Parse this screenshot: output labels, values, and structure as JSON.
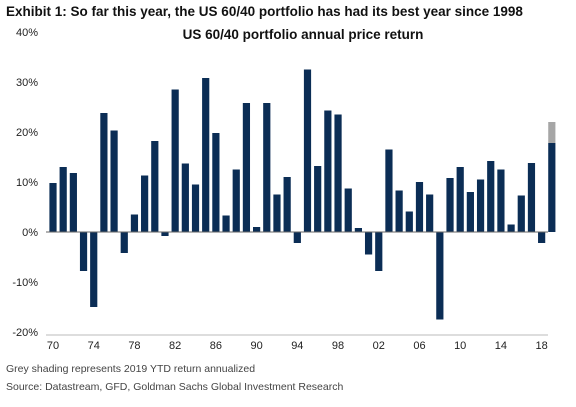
{
  "exhibit_title": "Exhibit 1: So far this year, the US 60/40 portfolio has had its best year since 1998",
  "footnotes": {
    "grey_note": "Grey shading represents 2019 YTD return annualized",
    "source": "Source: Datastream, GFD, Goldman Sachs Global Investment Research"
  },
  "chart_data": {
    "type": "bar",
    "title": "US 60/40 portfolio annual price return",
    "xlabel": "",
    "ylabel": "",
    "x": [
      1970,
      1971,
      1972,
      1973,
      1974,
      1975,
      1976,
      1977,
      1978,
      1979,
      1980,
      1981,
      1982,
      1983,
      1984,
      1985,
      1986,
      1987,
      1988,
      1989,
      1990,
      1991,
      1992,
      1993,
      1994,
      1995,
      1996,
      1997,
      1998,
      1999,
      2000,
      2001,
      2002,
      2003,
      2004,
      2005,
      2006,
      2007,
      2008,
      2009,
      2010,
      2011,
      2012,
      2013,
      2014,
      2015,
      2016,
      2017,
      2018,
      2019
    ],
    "series": [
      {
        "values": [
          9.8,
          13,
          11.8,
          -7.8,
          -15,
          23.8,
          20.3,
          -4.2,
          3.5,
          11.3,
          18.2,
          -0.8,
          28.5,
          13.7,
          9.5,
          30.8,
          19.8,
          3.3,
          12.5,
          25.8,
          1,
          25.8,
          7.5,
          11,
          -2.2,
          32.5,
          13.2,
          24.3,
          23.5,
          8.7,
          0.8,
          -4.5,
          -7.8,
          16.5,
          8.3,
          4.1,
          10,
          7.5,
          -17.5,
          10.8,
          13,
          8,
          10.5,
          14.2,
          12.5,
          1.5,
          7.3,
          13.8,
          -2.2,
          17.8
        ]
      }
    ],
    "annualized_2019_ytd": 22,
    "x_tick_labels": [
      "70",
      "74",
      "78",
      "82",
      "86",
      "90",
      "94",
      "98",
      "02",
      "06",
      "10",
      "14",
      "18"
    ],
    "x_tick_years": [
      1970,
      1974,
      1978,
      1982,
      1986,
      1990,
      1994,
      1998,
      2002,
      2006,
      2010,
      2014,
      2018
    ],
    "y_ticks": [
      -20,
      -10,
      0,
      10,
      20,
      30,
      40
    ],
    "y_tick_labels": [
      "-20%",
      "-10%",
      "0%",
      "10%",
      "20%",
      "30%",
      "40%"
    ],
    "ylim": [
      -20,
      40
    ],
    "grid": false,
    "legend": "none",
    "colors": {
      "bar": "#0b2d55",
      "grey_extension": "#a6a6a6",
      "axis": "#666666"
    }
  }
}
